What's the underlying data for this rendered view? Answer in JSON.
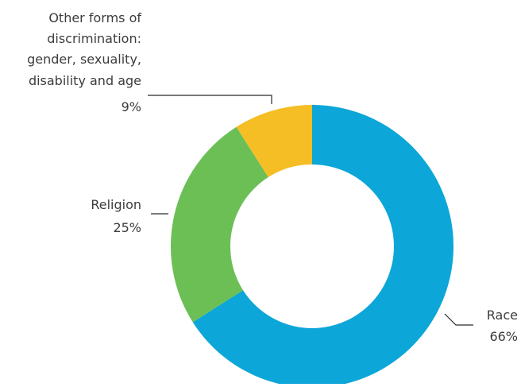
{
  "chart_data": {
    "type": "pie",
    "variant": "donut",
    "title": "",
    "categories": [
      "Race",
      "Religion",
      "Other forms of discrimination: gender, sexuality, disability and age"
    ],
    "values": [
      66,
      25,
      9
    ],
    "unit": "%",
    "slices": [
      {
        "label_lines": [
          "Race"
        ],
        "value_label": "66%",
        "value": 66,
        "color": "#0ca6d8"
      },
      {
        "label_lines": [
          "Religion"
        ],
        "value_label": "25%",
        "value": 25,
        "color": "#6cbf55"
      },
      {
        "label_lines": [
          "Other forms of",
          "discrimination:",
          "gender, sexuality,",
          "disability and age"
        ],
        "value_label": "9%",
        "value": 9,
        "color": "#f6be25"
      }
    ],
    "legend": "none",
    "labels_placement": "outside with leader lines"
  }
}
